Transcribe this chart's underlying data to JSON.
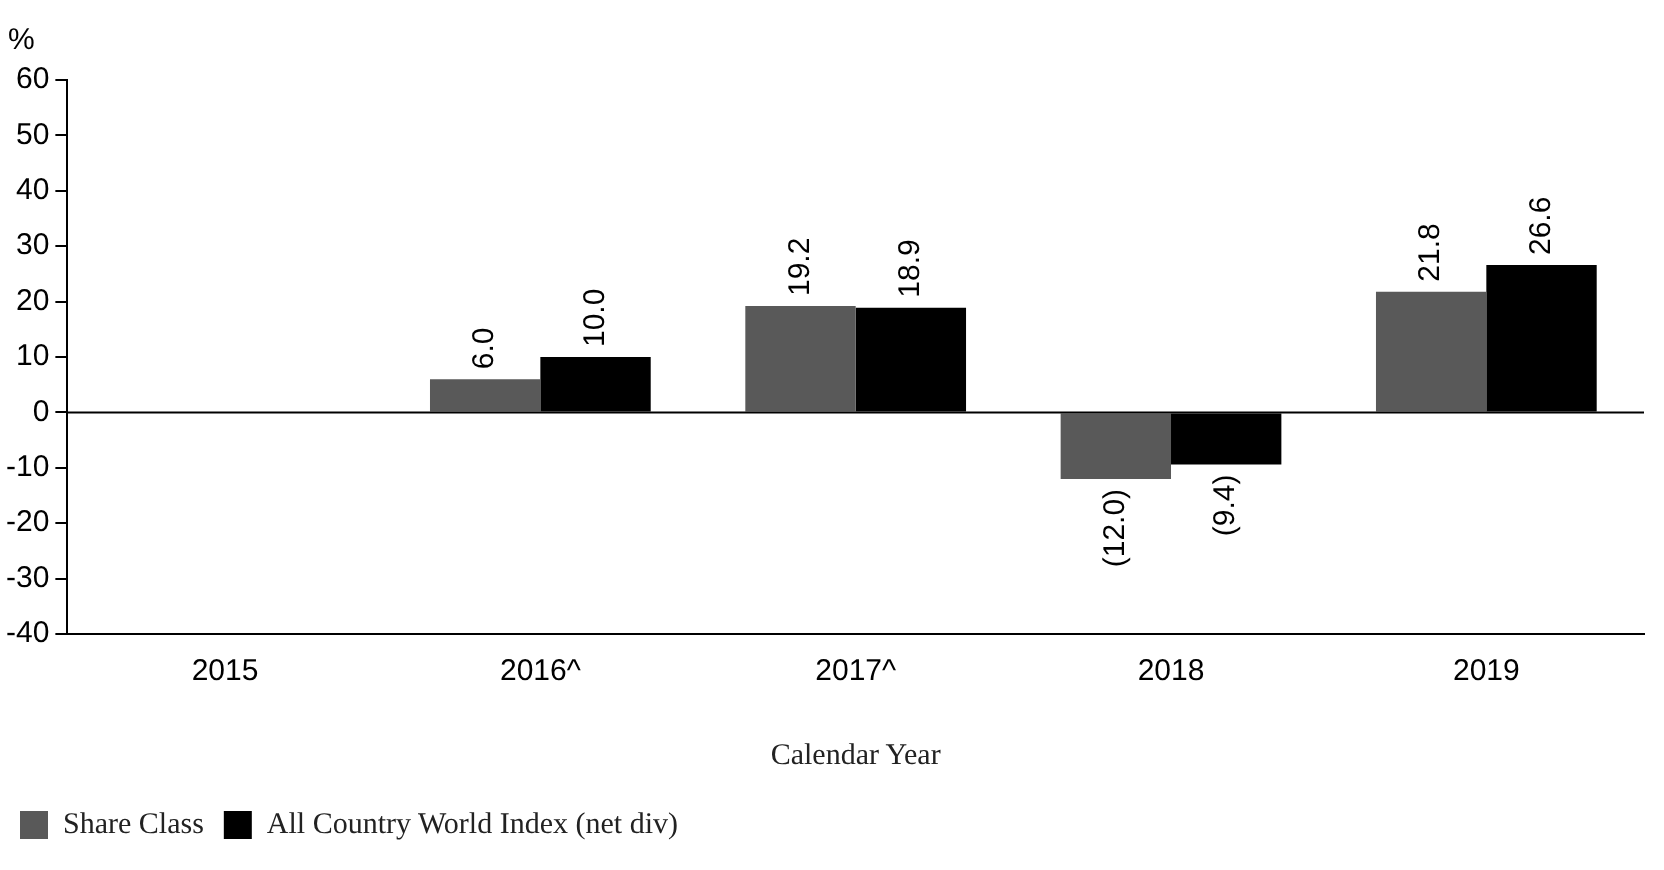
{
  "chart_data": {
    "type": "bar",
    "xlabel": "Calendar Year",
    "ylabel": "%",
    "categories": [
      "2015",
      "2016^",
      "2017^",
      "2018",
      "2019"
    ],
    "series": [
      {
        "name": "Share Class",
        "color": "#595959",
        "values": [
          null,
          6.0,
          19.2,
          -12.0,
          21.8
        ],
        "value_labels": [
          null,
          "6.0",
          "19.2",
          "(12.0)",
          "21.8"
        ]
      },
      {
        "name": "All Country World Index (net div)",
        "color": "#000000",
        "values": [
          null,
          10.0,
          18.9,
          -9.4,
          26.6
        ],
        "value_labels": [
          null,
          "10.0",
          "18.9",
          "(9.4)",
          "26.6"
        ]
      }
    ],
    "ylim": [
      -40,
      60
    ],
    "yticks": [
      -40,
      -30,
      -20,
      -10,
      0,
      10,
      20,
      30,
      40,
      50,
      60
    ],
    "ref_lines": [
      {
        "axis": "y",
        "value": 0,
        "color": "#000000"
      }
    ],
    "grid": false,
    "legend": "bottom left"
  }
}
